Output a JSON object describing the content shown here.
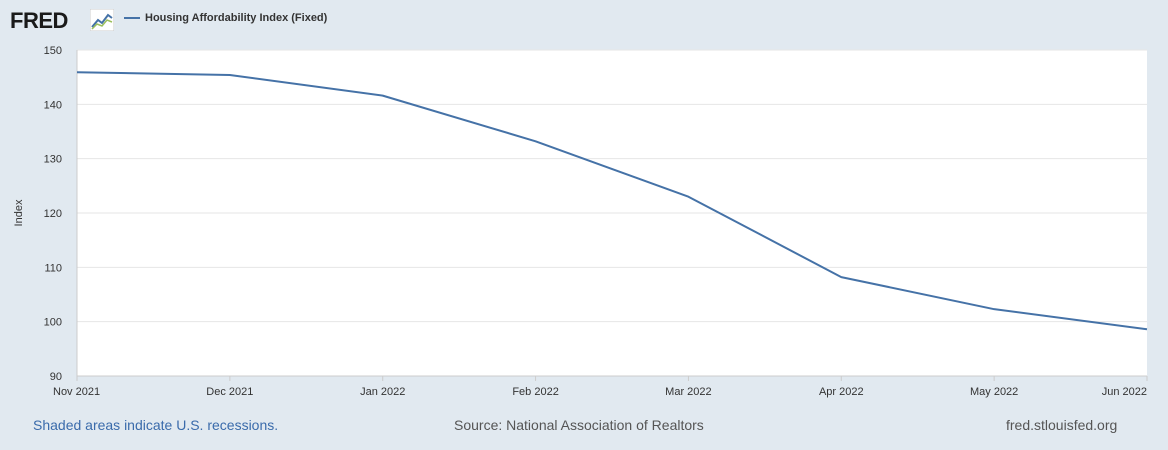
{
  "header": {
    "logo_text": "FRED",
    "legend_label": "Housing Affordability Index (Fixed)"
  },
  "footer": {
    "recession_note": "Shaded areas indicate U.S. recessions.",
    "source": "Source: National Association of Realtors",
    "site": "fred.stlouisfed.org"
  },
  "colors": {
    "series": "#4572a7",
    "background": "#e1e9f0",
    "plot_background": "#ffffff",
    "gridline": "#e6e6e6"
  },
  "chart_data": {
    "type": "line",
    "title": "",
    "xlabel": "",
    "ylabel": "Index",
    "ylim": [
      90,
      150
    ],
    "yticks": [
      90,
      100,
      110,
      120,
      130,
      140,
      150
    ],
    "grid": true,
    "legend": "top-left",
    "categories": [
      "Nov 2021",
      "Dec 2021",
      "Jan 2022",
      "Feb 2022",
      "Mar 2022",
      "Apr 2022",
      "May 2022",
      "Jun 2022"
    ],
    "series": [
      {
        "name": "Housing Affordability Index (Fixed)",
        "values": [
          145.9,
          145.4,
          141.6,
          133.2,
          123.0,
          108.2,
          102.3,
          98.6
        ]
      }
    ]
  }
}
